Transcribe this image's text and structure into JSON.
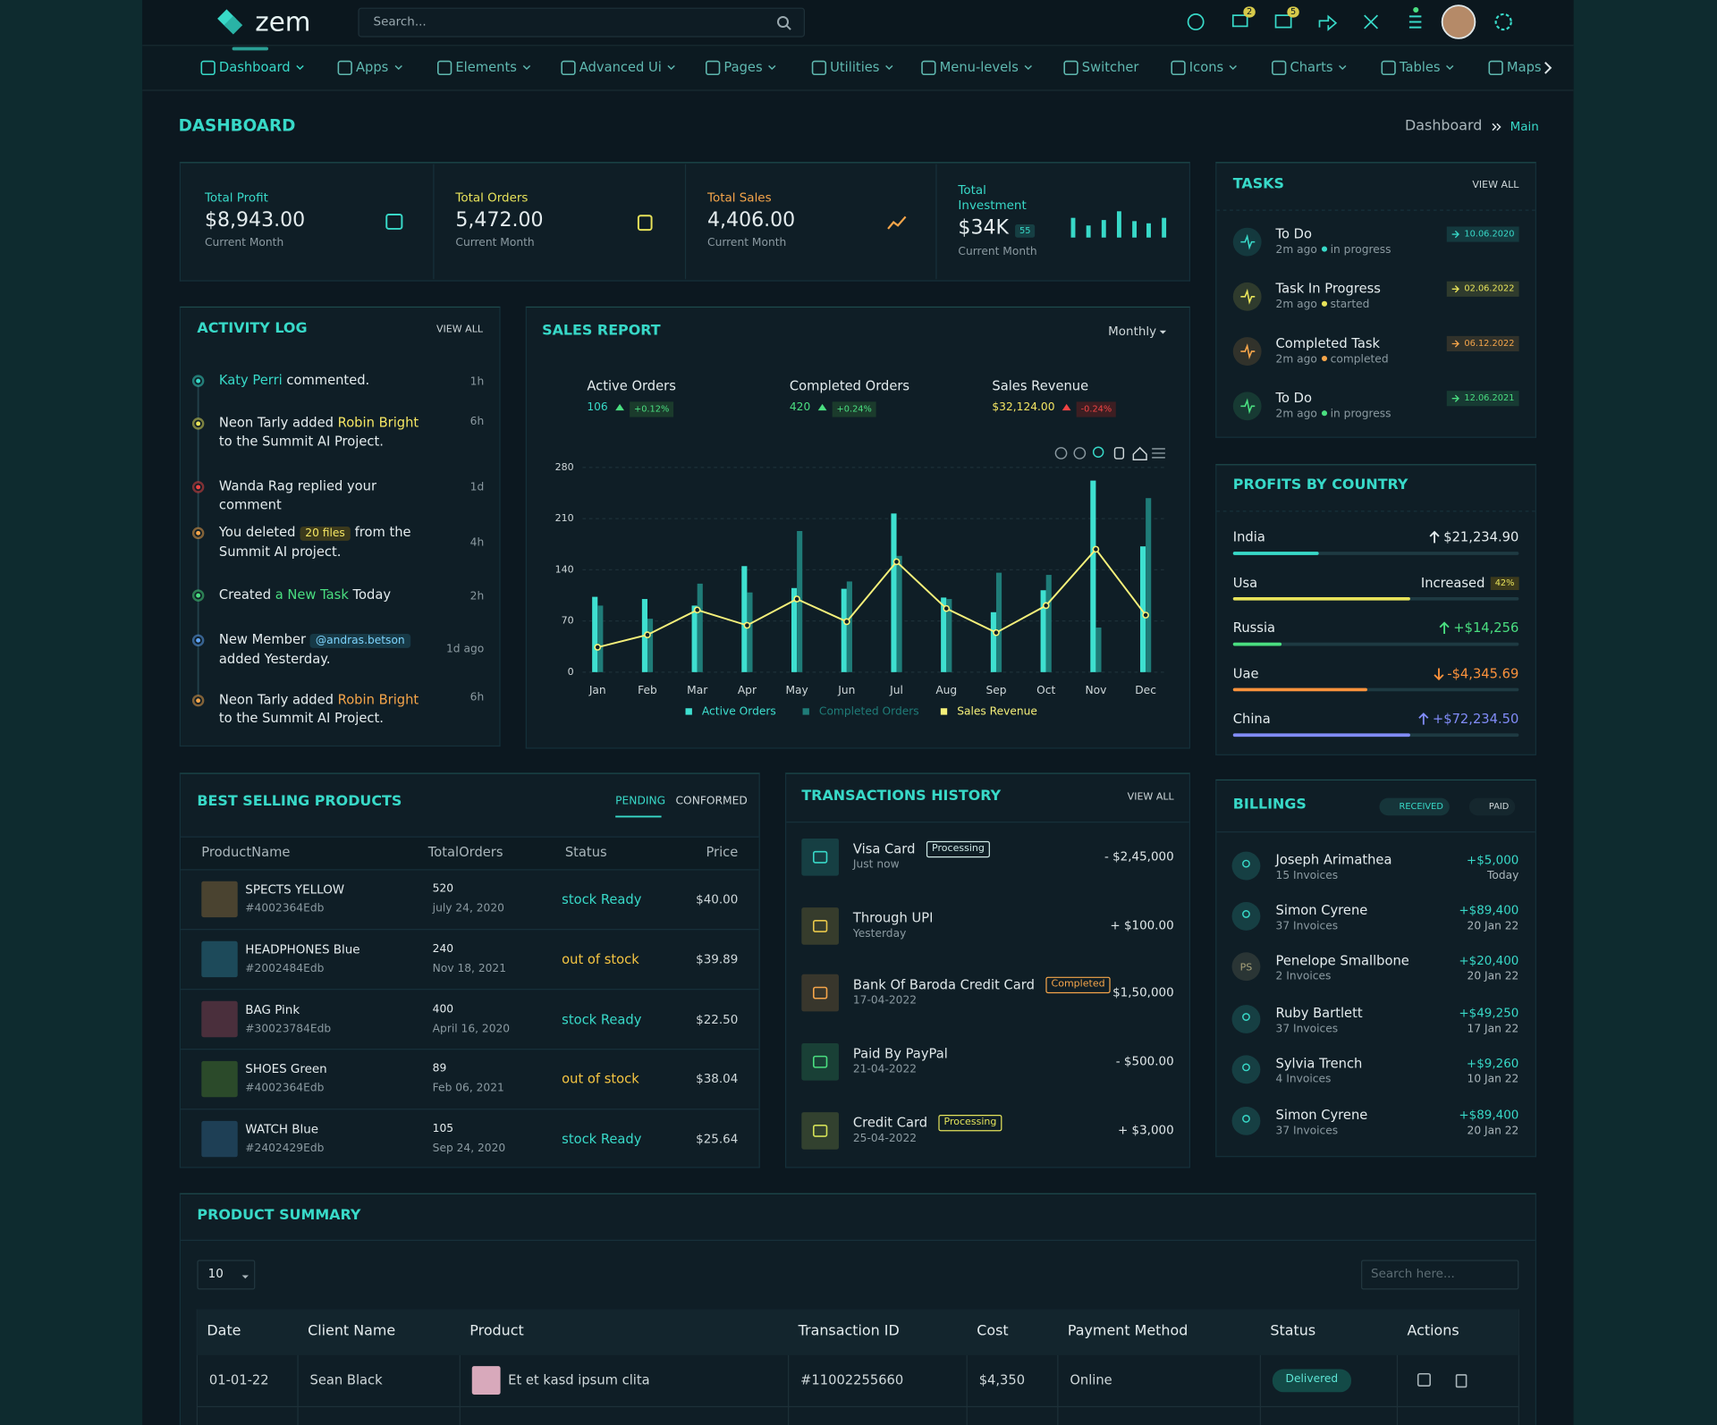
{
  "header": {
    "brand": "zem",
    "search_placeholder": "Search...",
    "cart_badge": "2",
    "mail_badge": "5"
  },
  "nav": [
    "Dashboard",
    "Apps",
    "Elements",
    "Advanced Ui",
    "Pages",
    "Utilities",
    "Menu-levels",
    "Switcher",
    "Icons",
    "Charts",
    "Tables",
    "Maps"
  ],
  "page_title": "DASHBOARD",
  "breadcrumb": [
    "Dashboard",
    "Main"
  ],
  "stats": [
    {
      "label": "Total Profit",
      "value": "$8,943.00",
      "sub": "Current Month",
      "color": "#38d9c8"
    },
    {
      "label": "Total Orders",
      "value": "5,472.00",
      "sub": "Current Month",
      "color": "#e8e35a"
    },
    {
      "label": "Total Sales",
      "value": "4,406.00",
      "sub": "Current Month",
      "color": "#f5a54a"
    },
    {
      "label": "Total Investment",
      "value": "$34K",
      "badge": "55",
      "sub": "Current Month",
      "color": "#38d9c8"
    }
  ],
  "activity_log": {
    "title": "ACTIVITY LOG",
    "view_all": "VIEW ALL",
    "items": [
      {
        "dot": "#38d9c8",
        "time": "1h",
        "parts": [
          {
            "text": "Katy Perri",
            "color": "#38d9c8"
          },
          {
            "text": " commented."
          }
        ]
      },
      {
        "dot": "#e8e35a",
        "time": "6h",
        "parts": [
          {
            "text": "Neon Tarly"
          },
          {
            "text": " added "
          },
          {
            "text": "Robin Bright",
            "color": "#f5e663"
          },
          {
            "text": " to the Summit AI Project."
          }
        ]
      },
      {
        "dot": "#ef4444",
        "time": "1d",
        "parts": [
          {
            "text": "Wanda Rag"
          },
          {
            "text": " replied your comment"
          }
        ]
      },
      {
        "dot": "#f5a54a",
        "time": "4h",
        "parts": [
          {
            "text": "You deleted "
          },
          {
            "text": "20 files",
            "color": "#f5e663",
            "bg": "#3c3a1c"
          },
          {
            "text": " from the Summit AI project."
          }
        ]
      },
      {
        "dot": "#4ade80",
        "time": "2h",
        "parts": [
          {
            "text": "Created "
          },
          {
            "text": "a New Task",
            "color": "#4ade80"
          },
          {
            "text": " Today"
          }
        ]
      },
      {
        "dot": "#60a5fa",
        "time": "1d ago",
        "parts": [
          {
            "text": "New Member "
          },
          {
            "text": "@andras.betson",
            "color": "#7dd3fc",
            "bg": "#173946"
          },
          {
            "text": " added Yesterday."
          }
        ]
      },
      {
        "dot": "#f5a54a",
        "time": "6h",
        "parts": [
          {
            "text": "Neon Tarly"
          },
          {
            "text": " added "
          },
          {
            "text": "Robin Bright",
            "color": "#f5a54a"
          },
          {
            "text": " to the Summit AI Project."
          }
        ]
      }
    ]
  },
  "sales_report": {
    "title": "SALES REPORT",
    "period": "Monthly",
    "metrics": [
      {
        "label": "Active Orders",
        "value": "106",
        "delta": "+0.12%",
        "color": "#38d9c8",
        "trend": "up"
      },
      {
        "label": "Completed Orders",
        "value": "420",
        "delta": "+0.24%",
        "color": "#4ade80",
        "trend": "up"
      },
      {
        "label": "Sales Revenue",
        "value": "$32,124.00",
        "delta": "-0.24%",
        "color": "#f5e663",
        "trend": "down"
      }
    ]
  },
  "chart_data": {
    "type": "bar",
    "categories": [
      "Jan",
      "Feb",
      "Mar",
      "Apr",
      "May",
      "Jun",
      "Jul",
      "Aug",
      "Sep",
      "Oct",
      "Nov",
      "Dec"
    ],
    "series": [
      {
        "name": "Active Orders",
        "color": "#3ee0d0",
        "values": [
          103,
          100,
          91,
          145,
          115,
          114,
          217,
          102,
          82,
          112,
          262,
          172
        ]
      },
      {
        "name": "Completed Orders",
        "color": "#1f7c78",
        "values": [
          91,
          73,
          121,
          109,
          193,
          124,
          159,
          100,
          136,
          133,
          61,
          238
        ]
      },
      {
        "name": "Sales Revenue",
        "color": "#f5f07a",
        "type": "line",
        "values": [
          34,
          51,
          85,
          64,
          100,
          69,
          151,
          87,
          54,
          91,
          168,
          78
        ]
      }
    ],
    "ylim": [
      0,
      280
    ],
    "yticks": [
      0,
      70,
      140,
      210,
      280
    ],
    "grid": true,
    "legend": "bottom"
  },
  "tasks": {
    "title": "TASKS",
    "view_all": "VIEW ALL",
    "items": [
      {
        "title": "To Do",
        "time": "2m ago",
        "status": "in progress",
        "date": "10.06.2020",
        "color": "#38d9c8"
      },
      {
        "title": "Task In Progress",
        "time": "2m ago",
        "status": "started",
        "date": "02.06.2022",
        "color": "#e8e35a"
      },
      {
        "title": "Completed Task",
        "time": "2m ago",
        "status": "completed",
        "date": "06.12.2022",
        "color": "#f5a54a"
      },
      {
        "title": "To Do",
        "time": "2m ago",
        "status": "in progress",
        "date": "12.06.2021",
        "color": "#4ade80"
      }
    ]
  },
  "profits": {
    "title": "PROFITS BY COUNTRY",
    "items": [
      {
        "country": "India",
        "value": "$21,234.90",
        "color": "#e4ecee",
        "bar": "#38d9c8",
        "trend": "up",
        "progress": 30
      },
      {
        "country": "Usa",
        "value": "Increased",
        "badge": "42%",
        "color": "#e4ecee",
        "bar": "#e8e35a",
        "trend": "none",
        "progress": 62
      },
      {
        "country": "Russia",
        "value": "+$14,256",
        "color": "#4ade80",
        "bar": "#4ade80",
        "trend": "up",
        "progress": 17
      },
      {
        "country": "Uae",
        "value": "-$4,345.69",
        "color": "#fb923c",
        "bar": "#fb923c",
        "trend": "down",
        "progress": 47
      },
      {
        "country": "China",
        "value": "+$72,234.50",
        "color": "#818cf8",
        "bar": "#818cf8",
        "trend": "up",
        "progress": 62
      }
    ]
  },
  "best_selling": {
    "title": "BEST SELLING PRODUCTS",
    "tabs": [
      "PENDING",
      "CONFORMED"
    ],
    "columns": [
      "ProductName",
      "TotalOrders",
      "Status",
      "Price"
    ],
    "rows": [
      {
        "name": "SPECTS YELLOW",
        "code": "#4002364Edb",
        "orders": "520",
        "date": "july 24, 2020",
        "status": "stock Ready",
        "price": "$40.00",
        "color": "#38d9c8",
        "thumb": "#4a4330"
      },
      {
        "name": "HEADPHONES Blue",
        "code": "#2002484Edb",
        "orders": "240",
        "date": "Nov 18, 2021",
        "status": "out of stock",
        "price": "$39.89",
        "color": "#f5c542",
        "thumb": "#1d4a5a"
      },
      {
        "name": "BAG Pink",
        "code": "#30023784Edb",
        "orders": "400",
        "date": "April 16, 2020",
        "status": "stock Ready",
        "price": "$22.50",
        "color": "#38d9c8",
        "thumb": "#4a2f3c"
      },
      {
        "name": "SHOES Green",
        "code": "#4002364Edb",
        "orders": "89",
        "date": "Feb 06, 2021",
        "status": "out of stock",
        "price": "$38.04",
        "color": "#f5c542",
        "thumb": "#2b4a2a"
      },
      {
        "name": "WATCH Blue",
        "code": "#2402429Edb",
        "orders": "105",
        "date": "Sep 24, 2020",
        "status": "stock Ready",
        "price": "$25.64",
        "color": "#38d9c8",
        "thumb": "#1e3f55"
      }
    ]
  },
  "transactions": {
    "title": "TRANSACTIONS HISTORY",
    "view_all": "VIEW ALL",
    "items": [
      {
        "name": "Visa Card",
        "badge": "Processing",
        "badge_color": "#cfe9e6",
        "sub": "Just now",
        "amount": "- $2,45,000",
        "color": "#38d9c8"
      },
      {
        "name": "Through UPI",
        "sub": "Yesterday",
        "amount": "+ $100.00",
        "color": "#e8c74a"
      },
      {
        "name": "Bank Of Baroda Credit Card",
        "badge": "Completed",
        "badge_color": "#f5a54a",
        "sub": "17-04-2022",
        "amount": "$1,50,000",
        "color": "#f5a54a"
      },
      {
        "name": "Paid By PayPal",
        "sub": "21-04-2022",
        "amount": "- $500.00",
        "color": "#4ade80"
      },
      {
        "name": "Credit Card",
        "badge": "Processing",
        "badge_color": "#e4e35b",
        "sub": "25-04-2022",
        "amount": "+ $3,000",
        "color": "#d4e157"
      }
    ]
  },
  "billings": {
    "title": "BILLINGS",
    "tabs": [
      "RECEIVED",
      "PAID"
    ],
    "items": [
      {
        "name": "Joseph Arimathea",
        "invoices": "15 Invoices",
        "amount": "+$5,000",
        "date": "Today"
      },
      {
        "name": "Simon Cyrene",
        "invoices": "37 Invoices",
        "amount": "+$89,400",
        "date": "20 Jan 22"
      },
      {
        "name": "Penelope Smallbone",
        "invoices": "2 Invoices",
        "amount": "+$20,400",
        "date": "20 Jan 22",
        "initials": "PS"
      },
      {
        "name": "Ruby Bartlett",
        "invoices": "37 Invoices",
        "amount": "+$49,250",
        "date": "17 Jan 22"
      },
      {
        "name": "Sylvia Trench",
        "invoices": "4 Invoices",
        "amount": "+$9,260",
        "date": "10 Jan 22"
      },
      {
        "name": "Simon Cyrene",
        "invoices": "37 Invoices",
        "amount": "+$89,400",
        "date": "20 Jan 22"
      }
    ]
  },
  "product_summary": {
    "title": "PRODUCT SUMMARY",
    "page_size": "10",
    "search_placeholder": "Search here...",
    "columns": [
      "Date",
      "Client Name",
      "Product",
      "Transaction ID",
      "Cost",
      "Payment Method",
      "Status",
      "Actions"
    ],
    "rows": [
      [
        "01-01-22",
        "Sean Black",
        "Et et kasd ipsum clita",
        "#11002255660",
        "$4,350",
        "Online",
        "Delivered"
      ]
    ]
  }
}
